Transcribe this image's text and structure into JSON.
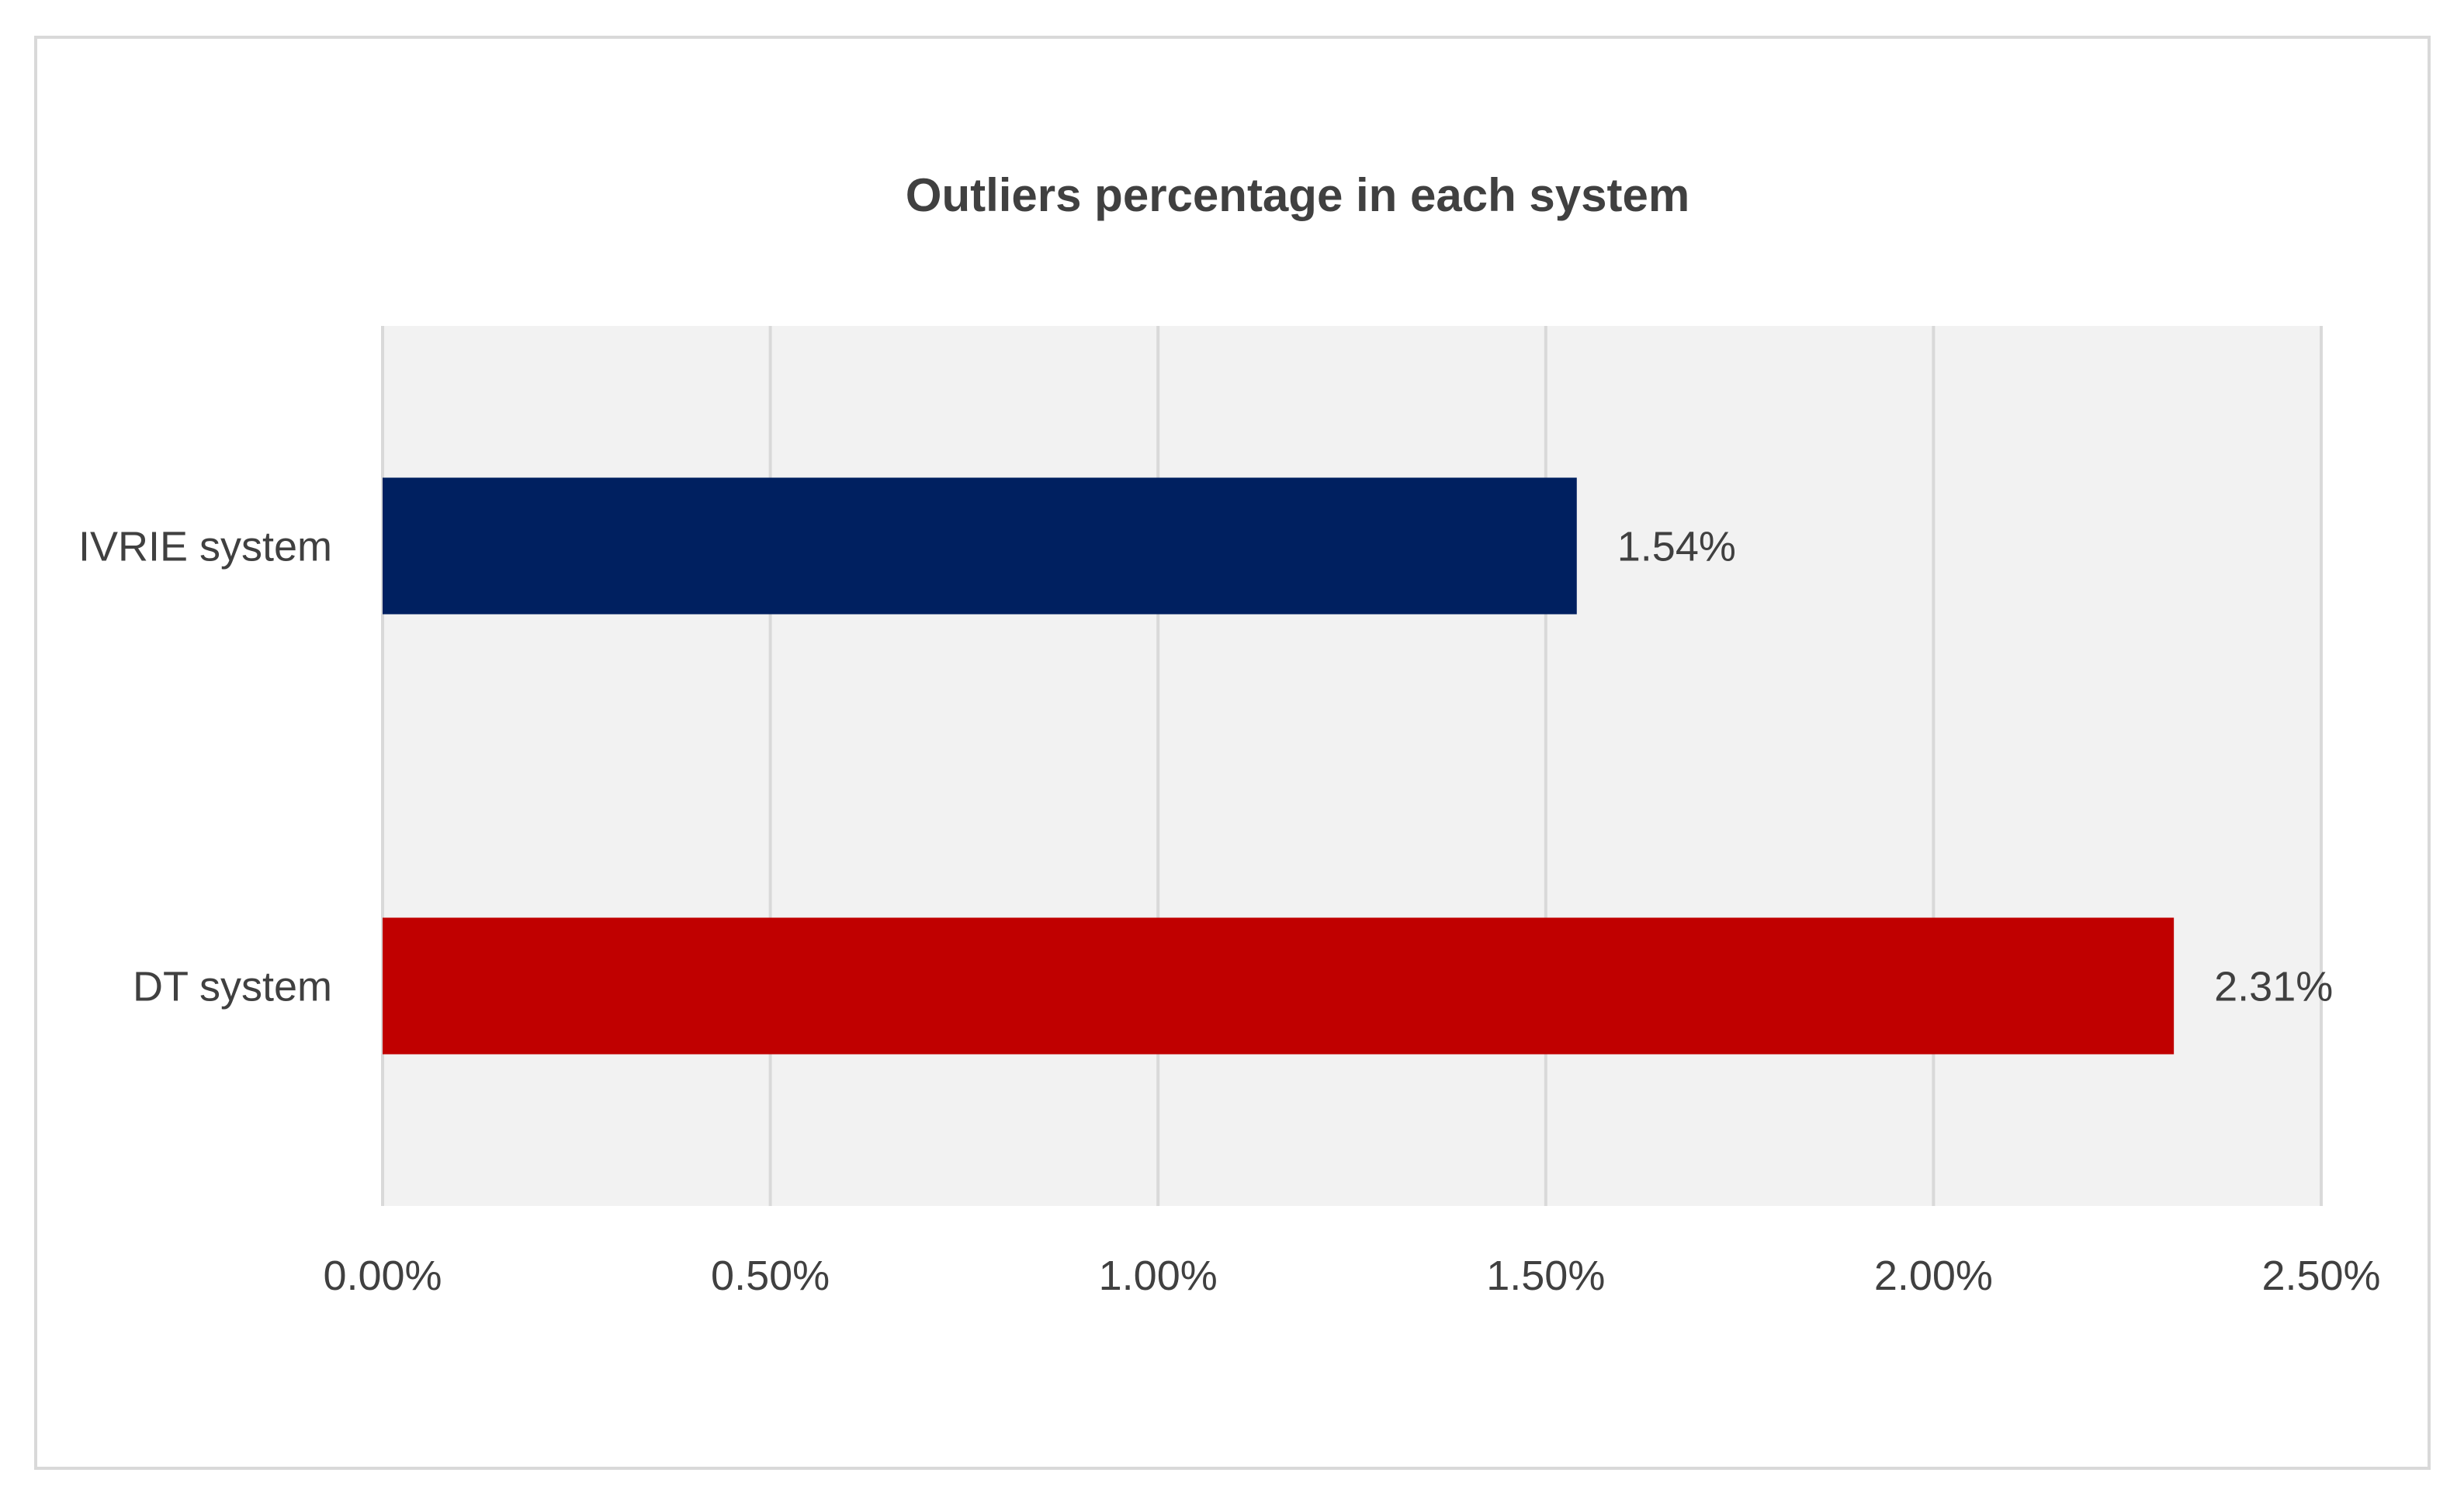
{
  "chart_data": {
    "type": "bar",
    "orientation": "horizontal",
    "title": "Outliers percentage in each system",
    "xlabel": "",
    "ylabel": "",
    "categories": [
      "IVRIE system",
      "DT system"
    ],
    "values": [
      1.54,
      2.31
    ],
    "data_labels": [
      "1.54%",
      "2.31%"
    ],
    "bar_colors": [
      "#002060",
      "#c00000"
    ],
    "xlim": [
      0,
      2.5
    ],
    "x_ticks": [
      0,
      0.5,
      1.0,
      1.5,
      2.0,
      2.5
    ],
    "x_tick_labels": [
      "0.00%",
      "0.50%",
      "1.00%",
      "1.50%",
      "2.00%",
      "2.50%"
    ],
    "grid": true,
    "legend": "none",
    "plot_background": "#f2f2f2",
    "gridline_color": "#d9d9d9",
    "text_color": "#404040"
  }
}
